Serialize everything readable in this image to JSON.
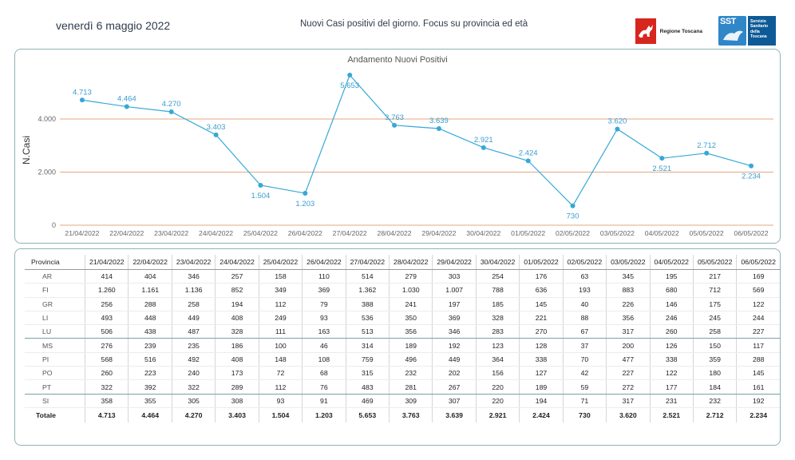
{
  "header": {
    "date": "venerdì 6 maggio 2022",
    "subtitle": "Nuovi Casi positivi del giorno. Focus su provincia ed età",
    "logo_regione": "Regione Toscana",
    "logo_sst_mark": "SST",
    "logo_sst_text": [
      "Servizio",
      "Sanitario",
      "della",
      "Toscana"
    ]
  },
  "colors": {
    "line": "#35a8d8",
    "grid": "#e4a781",
    "label": "#3a9cd0",
    "axis_text": "#666666",
    "border": "#8fb3b3"
  },
  "chart_data": {
    "type": "line",
    "title": "Andamento Nuovi Positivi",
    "xlabel": "",
    "ylabel": "N.Casi",
    "ylim": [
      0,
      5653
    ],
    "yticks": [
      0,
      2000,
      4000
    ],
    "ytick_labels": [
      "0",
      "2.000",
      "4.000"
    ],
    "grid": true,
    "categories": [
      "21/04/2022",
      "22/04/2022",
      "23/04/2022",
      "24/04/2022",
      "25/04/2022",
      "26/04/2022",
      "27/04/2022",
      "28/04/2022",
      "29/04/2022",
      "30/04/2022",
      "01/05/2022",
      "02/05/2022",
      "03/05/2022",
      "04/05/2022",
      "05/05/2022",
      "06/05/2022"
    ],
    "values": [
      4713,
      4464,
      4270,
      3403,
      1504,
      1203,
      5653,
      3763,
      3639,
      2921,
      2424,
      730,
      3620,
      2521,
      2712,
      2234
    ],
    "value_labels": [
      "4.713",
      "4.464",
      "4.270",
      "3.403",
      "1.504",
      "1.203",
      "5.653",
      "3.763",
      "3.639",
      "2.921",
      "2.424",
      "730",
      "3.620",
      "2.521",
      "2.712",
      "2.234"
    ],
    "label_position": [
      "above",
      "above",
      "above",
      "above",
      "below",
      "below",
      "below",
      "above",
      "above",
      "above",
      "above",
      "below",
      "above",
      "below",
      "above",
      "below"
    ]
  },
  "table": {
    "corner_header": "Provincia",
    "columns": [
      "21/04/2022",
      "22/04/2022",
      "23/04/2022",
      "24/04/2022",
      "25/04/2022",
      "26/04/2022",
      "27/04/2022",
      "28/04/2022",
      "29/04/2022",
      "30/04/2022",
      "01/05/2022",
      "02/05/2022",
      "03/05/2022",
      "04/05/2022",
      "05/05/2022",
      "06/05/2022"
    ],
    "rows": [
      {
        "name": "AR",
        "values": [
          "414",
          "404",
          "346",
          "257",
          "158",
          "110",
          "514",
          "279",
          "303",
          "254",
          "176",
          "63",
          "345",
          "195",
          "217",
          "169"
        ]
      },
      {
        "name": "FI",
        "values": [
          "1.260",
          "1.161",
          "1.136",
          "852",
          "349",
          "369",
          "1.362",
          "1.030",
          "1.007",
          "788",
          "636",
          "193",
          "883",
          "680",
          "712",
          "569"
        ]
      },
      {
        "name": "GR",
        "values": [
          "256",
          "288",
          "258",
          "194",
          "112",
          "79",
          "388",
          "241",
          "197",
          "185",
          "145",
          "40",
          "226",
          "146",
          "175",
          "122"
        ]
      },
      {
        "name": "LI",
        "values": [
          "493",
          "448",
          "449",
          "408",
          "249",
          "93",
          "536",
          "350",
          "369",
          "328",
          "221",
          "88",
          "356",
          "246",
          "245",
          "244"
        ]
      },
      {
        "name": "LU",
        "values": [
          "506",
          "438",
          "487",
          "328",
          "111",
          "163",
          "513",
          "356",
          "346",
          "283",
          "270",
          "67",
          "317",
          "260",
          "258",
          "227"
        ]
      },
      {
        "name": "MS",
        "values": [
          "276",
          "239",
          "235",
          "186",
          "100",
          "46",
          "314",
          "189",
          "192",
          "123",
          "128",
          "37",
          "200",
          "126",
          "150",
          "117"
        ]
      },
      {
        "name": "PI",
        "values": [
          "568",
          "516",
          "492",
          "408",
          "148",
          "108",
          "759",
          "496",
          "449",
          "364",
          "338",
          "70",
          "477",
          "338",
          "359",
          "288"
        ]
      },
      {
        "name": "PO",
        "values": [
          "260",
          "223",
          "240",
          "173",
          "72",
          "68",
          "315",
          "232",
          "202",
          "156",
          "127",
          "42",
          "227",
          "122",
          "180",
          "145"
        ]
      },
      {
        "name": "PT",
        "values": [
          "322",
          "392",
          "322",
          "289",
          "112",
          "76",
          "483",
          "281",
          "267",
          "220",
          "189",
          "59",
          "272",
          "177",
          "184",
          "161"
        ]
      },
      {
        "name": "SI",
        "values": [
          "358",
          "355",
          "305",
          "308",
          "93",
          "91",
          "469",
          "309",
          "307",
          "220",
          "194",
          "71",
          "317",
          "231",
          "232",
          "192"
        ]
      }
    ],
    "total": {
      "name": "Totale",
      "values": [
        "4.713",
        "4.464",
        "4.270",
        "3.403",
        "1.504",
        "1.203",
        "5.653",
        "3.763",
        "3.639",
        "2.921",
        "2.424",
        "730",
        "3.620",
        "2.521",
        "2.712",
        "2.234"
      ]
    }
  }
}
